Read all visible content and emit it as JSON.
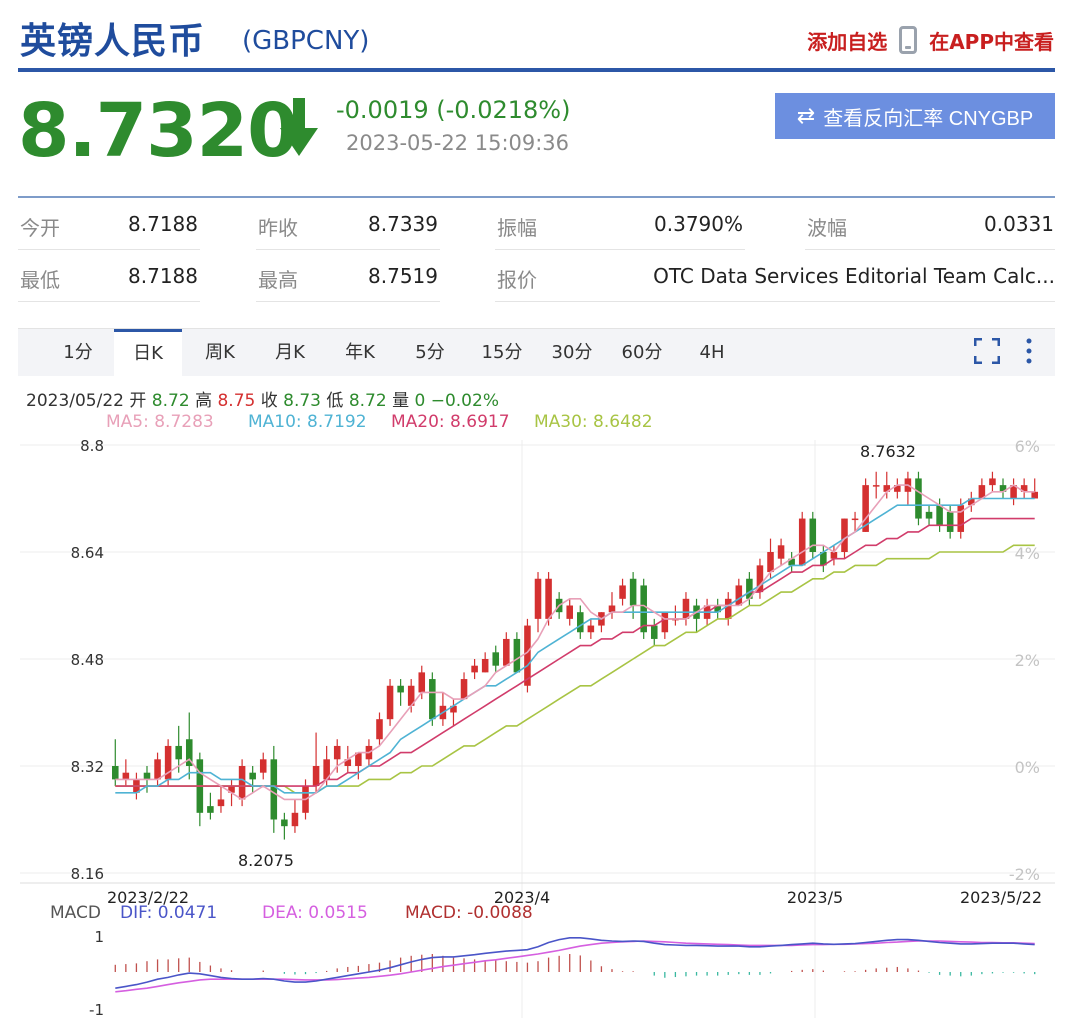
{
  "header": {
    "title": "英镑人民币",
    "code": "(GBPCNY)",
    "add_watchlist": "添加自选",
    "view_in_app": "在APP中查看"
  },
  "quote": {
    "price": "8.7320",
    "change": "-0.0019 (-0.0218%)",
    "time": "2023-05-22 15:09:36",
    "reverse_label": "查看反向汇率 CNYGBP",
    "color_down": "#2e8b2e",
    "color_up": "#d43030"
  },
  "stats": [
    {
      "label": "今开",
      "value": "8.7188"
    },
    {
      "label": "昨收",
      "value": "8.7339"
    },
    {
      "label": "振幅",
      "value": "0.3790%"
    },
    {
      "label": "波幅",
      "value": "0.0331"
    },
    {
      "label": "最低",
      "value": "8.7188"
    },
    {
      "label": "最高",
      "value": "8.7519"
    },
    {
      "label": "报价",
      "value": "OTC Data Services Editorial Team Calc..."
    }
  ],
  "tabs": [
    "1分",
    "日K",
    "周K",
    "月K",
    "年K",
    "5分",
    "15分",
    "30分",
    "60分",
    "4H"
  ],
  "active_tab": "日K",
  "ohlc": {
    "date": "2023/05/22",
    "open_label": "开",
    "open": "8.72",
    "high_label": "高",
    "high": "8.75",
    "close_label": "收",
    "close": "8.73",
    "low_label": "低",
    "low": "8.72",
    "vol_label": "量",
    "vol": "0",
    "pct": "−0.02%"
  },
  "ma_labels": [
    {
      "text": "MA5: 8.7283",
      "color": "#e8a0b8"
    },
    {
      "text": "MA10: 8.7192",
      "color": "#4fb3d4"
    },
    {
      "text": "MA20: 8.6917",
      "color": "#d13c6b"
    },
    {
      "text": "MA30: 8.6482",
      "color": "#a8c444"
    }
  ],
  "macd_labels": {
    "title": "MACD",
    "dif": "DIF: 0.0471",
    "dea": "DEA: 0.0515",
    "macd": "MACD: -0.0088",
    "dif_color": "#4a55c8",
    "dea_color": "#d55fe0",
    "macd_color": "#b03030"
  },
  "chart_data": {
    "type": "candlestick",
    "y_ticks": [
      "8.8",
      "8.64",
      "8.48",
      "8.32",
      "8.16"
    ],
    "ylim": [
      8.16,
      8.8
    ],
    "pct_ticks": [
      "6%",
      "4%",
      "2%",
      "0%",
      "-2%"
    ],
    "x_labels": [
      "2023/2/22",
      "2023/4",
      "2023/5",
      "2023/5/22"
    ],
    "annotations": {
      "max": "8.7632",
      "min": "8.2075"
    },
    "candles": [
      [
        8.32,
        8.3,
        8.36,
        8.29
      ],
      [
        8.3,
        8.31,
        8.33,
        8.29
      ],
      [
        8.28,
        8.3,
        8.31,
        8.27
      ],
      [
        8.31,
        8.3,
        8.32,
        8.28
      ],
      [
        8.3,
        8.33,
        8.34,
        8.29
      ],
      [
        8.3,
        8.35,
        8.36,
        8.29
      ],
      [
        8.35,
        8.33,
        8.38,
        8.31
      ],
      [
        8.36,
        8.32,
        8.4,
        8.3
      ],
      [
        8.33,
        8.25,
        8.34,
        8.23
      ],
      [
        8.26,
        8.25,
        8.28,
        8.24
      ],
      [
        8.26,
        8.27,
        8.29,
        8.25
      ],
      [
        8.28,
        8.29,
        8.3,
        8.26
      ],
      [
        8.27,
        8.32,
        8.33,
        8.26
      ],
      [
        8.31,
        8.3,
        8.32,
        8.28
      ],
      [
        8.31,
        8.33,
        8.34,
        8.3
      ],
      [
        8.33,
        8.24,
        8.35,
        8.22
      ],
      [
        8.24,
        8.23,
        8.25,
        8.21
      ],
      [
        8.23,
        8.25,
        8.27,
        8.22
      ],
      [
        8.25,
        8.29,
        8.3,
        8.24
      ],
      [
        8.29,
        8.32,
        8.37,
        8.28
      ],
      [
        8.3,
        8.33,
        8.35,
        8.29
      ],
      [
        8.33,
        8.35,
        8.36,
        8.31
      ],
      [
        8.32,
        8.33,
        8.35,
        8.31
      ],
      [
        8.32,
        8.34,
        8.34,
        8.3
      ],
      [
        8.33,
        8.35,
        8.36,
        8.32
      ],
      [
        8.36,
        8.39,
        8.4,
        8.35
      ],
      [
        8.39,
        8.44,
        8.45,
        8.38
      ],
      [
        8.44,
        8.43,
        8.45,
        8.41
      ],
      [
        8.41,
        8.44,
        8.45,
        8.4
      ],
      [
        8.43,
        8.46,
        8.47,
        8.42
      ],
      [
        8.45,
        8.39,
        8.46,
        8.38
      ],
      [
        8.39,
        8.41,
        8.43,
        8.38
      ],
      [
        8.4,
        8.41,
        8.42,
        8.38
      ],
      [
        8.42,
        8.45,
        8.46,
        8.42
      ],
      [
        8.46,
        8.47,
        8.48,
        8.45
      ],
      [
        8.46,
        8.48,
        8.49,
        8.46
      ],
      [
        8.49,
        8.47,
        8.5,
        8.46
      ],
      [
        8.47,
        8.51,
        8.52,
        8.47
      ],
      [
        8.51,
        8.46,
        8.52,
        8.46
      ],
      [
        8.44,
        8.53,
        8.54,
        8.43
      ],
      [
        8.54,
        8.6,
        8.61,
        8.52
      ],
      [
        8.54,
        8.6,
        8.61,
        8.53
      ],
      [
        8.57,
        8.55,
        8.58,
        8.54
      ],
      [
        8.54,
        8.56,
        8.57,
        8.53
      ],
      [
        8.55,
        8.52,
        8.56,
        8.51
      ],
      [
        8.52,
        8.53,
        8.54,
        8.51
      ],
      [
        8.53,
        8.55,
        8.55,
        8.52
      ],
      [
        8.55,
        8.56,
        8.58,
        8.54
      ],
      [
        8.57,
        8.59,
        8.6,
        8.56
      ],
      [
        8.6,
        8.56,
        8.61,
        8.54
      ],
      [
        8.59,
        8.52,
        8.6,
        8.51
      ],
      [
        8.53,
        8.51,
        8.54,
        8.5
      ],
      [
        8.52,
        8.55,
        8.55,
        8.51
      ],
      [
        8.54,
        8.54,
        8.56,
        8.53
      ],
      [
        8.54,
        8.57,
        8.58,
        8.53
      ],
      [
        8.56,
        8.54,
        8.57,
        8.52
      ],
      [
        8.54,
        8.56,
        8.57,
        8.53
      ],
      [
        8.56,
        8.55,
        8.57,
        8.54
      ],
      [
        8.54,
        8.57,
        8.58,
        8.53
      ],
      [
        8.56,
        8.59,
        8.6,
        8.56
      ],
      [
        8.6,
        8.57,
        8.61,
        8.56
      ],
      [
        8.58,
        8.62,
        8.63,
        8.57
      ],
      [
        8.61,
        8.64,
        8.66,
        8.6
      ],
      [
        8.63,
        8.65,
        8.66,
        8.62
      ],
      [
        8.63,
        8.62,
        8.64,
        8.61
      ],
      [
        8.62,
        8.69,
        8.7,
        8.62
      ],
      [
        8.69,
        8.64,
        8.7,
        8.63
      ],
      [
        8.64,
        8.62,
        8.65,
        8.61
      ],
      [
        8.63,
        8.64,
        8.65,
        8.62
      ],
      [
        8.64,
        8.69,
        8.69,
        8.63
      ],
      [
        8.69,
        8.69,
        8.7,
        8.67
      ],
      [
        8.67,
        8.74,
        8.75,
        8.67
      ],
      [
        8.74,
        8.74,
        8.76,
        8.72
      ],
      [
        8.73,
        8.74,
        8.76,
        8.72
      ],
      [
        8.73,
        8.74,
        8.75,
        8.72
      ],
      [
        8.73,
        8.75,
        8.76,
        8.71
      ],
      [
        8.75,
        8.69,
        8.76,
        8.68
      ],
      [
        8.7,
        8.69,
        8.71,
        8.68
      ],
      [
        8.71,
        8.68,
        8.72,
        8.67
      ],
      [
        8.7,
        8.67,
        8.71,
        8.66
      ],
      [
        8.67,
        8.71,
        8.72,
        8.66
      ],
      [
        8.71,
        8.72,
        8.73,
        8.7
      ],
      [
        8.72,
        8.74,
        8.75,
        8.72
      ],
      [
        8.74,
        8.75,
        8.76,
        8.73
      ],
      [
        8.74,
        8.73,
        8.75,
        8.72
      ],
      [
        8.72,
        8.74,
        8.75,
        8.71
      ],
      [
        8.73,
        8.74,
        8.75,
        8.72
      ],
      [
        8.72,
        8.73,
        8.75,
        8.72
      ]
    ],
    "ma5": [
      8.3,
      8.3,
      8.3,
      8.3,
      8.3,
      8.31,
      8.32,
      8.33,
      8.31,
      8.3,
      8.29,
      8.28,
      8.27,
      8.28,
      8.29,
      8.28,
      8.27,
      8.27,
      8.27,
      8.28,
      8.3,
      8.32,
      8.33,
      8.34,
      8.34,
      8.35,
      8.37,
      8.39,
      8.41,
      8.43,
      8.43,
      8.43,
      8.42,
      8.42,
      8.43,
      8.44,
      8.46,
      8.47,
      8.48,
      8.49,
      8.51,
      8.54,
      8.56,
      8.57,
      8.57,
      8.55,
      8.54,
      8.55,
      8.55,
      8.56,
      8.56,
      8.55,
      8.54,
      8.54,
      8.54,
      8.55,
      8.56,
      8.56,
      8.56,
      8.56,
      8.57,
      8.59,
      8.61,
      8.62,
      8.63,
      8.64,
      8.65,
      8.65,
      8.64,
      8.66,
      8.67,
      8.69,
      8.71,
      8.73,
      8.74,
      8.74,
      8.73,
      8.72,
      8.71,
      8.7,
      8.7,
      8.71,
      8.72,
      8.73,
      8.73,
      8.74,
      8.73,
      8.73
    ],
    "ma10": [
      8.28,
      8.28,
      8.28,
      8.29,
      8.29,
      8.3,
      8.3,
      8.31,
      8.31,
      8.31,
      8.3,
      8.3,
      8.3,
      8.29,
      8.29,
      8.29,
      8.28,
      8.28,
      8.28,
      8.28,
      8.29,
      8.29,
      8.3,
      8.31,
      8.32,
      8.33,
      8.34,
      8.36,
      8.37,
      8.38,
      8.39,
      8.4,
      8.41,
      8.42,
      8.43,
      8.44,
      8.44,
      8.45,
      8.46,
      8.47,
      8.49,
      8.5,
      8.51,
      8.52,
      8.53,
      8.54,
      8.54,
      8.55,
      8.55,
      8.55,
      8.55,
      8.55,
      8.55,
      8.55,
      8.55,
      8.55,
      8.55,
      8.55,
      8.56,
      8.57,
      8.58,
      8.59,
      8.6,
      8.61,
      8.62,
      8.62,
      8.63,
      8.64,
      8.65,
      8.66,
      8.67,
      8.68,
      8.69,
      8.7,
      8.71,
      8.71,
      8.71,
      8.71,
      8.71,
      8.71,
      8.71,
      8.72,
      8.72,
      8.72,
      8.72,
      8.72,
      8.72,
      8.72
    ],
    "ma20": [
      8.29,
      8.29,
      8.29,
      8.29,
      8.29,
      8.29,
      8.29,
      8.29,
      8.29,
      8.29,
      8.29,
      8.29,
      8.29,
      8.29,
      8.29,
      8.29,
      8.29,
      8.29,
      8.29,
      8.29,
      8.3,
      8.3,
      8.31,
      8.31,
      8.32,
      8.32,
      8.33,
      8.34,
      8.34,
      8.35,
      8.36,
      8.37,
      8.38,
      8.39,
      8.4,
      8.41,
      8.42,
      8.43,
      8.44,
      8.45,
      8.46,
      8.47,
      8.48,
      8.49,
      8.5,
      8.5,
      8.51,
      8.51,
      8.52,
      8.52,
      8.53,
      8.53,
      8.54,
      8.54,
      8.54,
      8.55,
      8.55,
      8.56,
      8.56,
      8.57,
      8.58,
      8.58,
      8.59,
      8.6,
      8.61,
      8.61,
      8.62,
      8.62,
      8.63,
      8.63,
      8.64,
      8.65,
      8.65,
      8.66,
      8.66,
      8.67,
      8.67,
      8.68,
      8.68,
      8.68,
      8.68,
      8.69,
      8.69,
      8.69,
      8.69,
      8.69,
      8.69,
      8.69
    ],
    "ma30": [
      8.29,
      8.29,
      8.29,
      8.29,
      8.29,
      8.29,
      8.29,
      8.29,
      8.29,
      8.29,
      8.29,
      8.29,
      8.29,
      8.29,
      8.29,
      8.29,
      8.29,
      8.28,
      8.28,
      8.28,
      8.29,
      8.29,
      8.29,
      8.29,
      8.3,
      8.3,
      8.3,
      8.31,
      8.31,
      8.32,
      8.32,
      8.33,
      8.34,
      8.35,
      8.35,
      8.36,
      8.37,
      8.38,
      8.38,
      8.39,
      8.4,
      8.41,
      8.42,
      8.43,
      8.44,
      8.44,
      8.45,
      8.46,
      8.47,
      8.48,
      8.49,
      8.5,
      8.5,
      8.51,
      8.52,
      8.52,
      8.53,
      8.54,
      8.54,
      8.55,
      8.56,
      8.56,
      8.57,
      8.58,
      8.58,
      8.59,
      8.6,
      8.6,
      8.61,
      8.61,
      8.62,
      8.62,
      8.62,
      8.63,
      8.63,
      8.63,
      8.63,
      8.63,
      8.64,
      8.64,
      8.64,
      8.64,
      8.64,
      8.64,
      8.64,
      8.65,
      8.65,
      8.65
    ],
    "macd_ylim": [
      -1,
      1
    ],
    "macd_y_ticks": [
      "1",
      "-1"
    ],
    "dif": [
      -0.45,
      -0.4,
      -0.35,
      -0.28,
      -0.2,
      -0.15,
      -0.08,
      -0.03,
      -0.05,
      -0.1,
      -0.15,
      -0.18,
      -0.2,
      -0.2,
      -0.18,
      -0.2,
      -0.25,
      -0.28,
      -0.28,
      -0.25,
      -0.2,
      -0.15,
      -0.1,
      -0.05,
      0.0,
      0.05,
      0.12,
      0.2,
      0.28,
      0.35,
      0.4,
      0.42,
      0.42,
      0.45,
      0.48,
      0.52,
      0.55,
      0.58,
      0.6,
      0.62,
      0.7,
      0.82,
      0.9,
      0.95,
      0.95,
      0.92,
      0.88,
      0.86,
      0.85,
      0.86,
      0.85,
      0.8,
      0.76,
      0.75,
      0.74,
      0.74,
      0.73,
      0.72,
      0.72,
      0.72,
      0.7,
      0.7,
      0.72,
      0.74,
      0.76,
      0.78,
      0.8,
      0.78,
      0.77,
      0.78,
      0.79,
      0.82,
      0.85,
      0.88,
      0.9,
      0.9,
      0.88,
      0.85,
      0.82,
      0.8,
      0.78,
      0.78,
      0.79,
      0.8,
      0.8,
      0.8,
      0.78,
      0.76
    ],
    "dea": [
      -0.55,
      -0.52,
      -0.48,
      -0.45,
      -0.4,
      -0.35,
      -0.3,
      -0.26,
      -0.22,
      -0.2,
      -0.2,
      -0.2,
      -0.2,
      -0.2,
      -0.2,
      -0.2,
      -0.2,
      -0.21,
      -0.22,
      -0.22,
      -0.22,
      -0.21,
      -0.19,
      -0.17,
      -0.15,
      -0.12,
      -0.09,
      -0.05,
      0.0,
      0.05,
      0.1,
      0.15,
      0.19,
      0.23,
      0.27,
      0.31,
      0.34,
      0.38,
      0.42,
      0.46,
      0.5,
      0.55,
      0.6,
      0.66,
      0.72,
      0.76,
      0.8,
      0.82,
      0.84,
      0.85,
      0.86,
      0.85,
      0.84,
      0.82,
      0.8,
      0.79,
      0.78,
      0.77,
      0.76,
      0.75,
      0.74,
      0.74,
      0.74,
      0.74,
      0.74,
      0.75,
      0.76,
      0.76,
      0.77,
      0.77,
      0.78,
      0.79,
      0.8,
      0.82,
      0.83,
      0.85,
      0.86,
      0.86,
      0.86,
      0.85,
      0.84,
      0.83,
      0.82,
      0.82,
      0.81,
      0.81,
      0.8,
      0.79
    ],
    "macd_bars": [
      0.2,
      0.22,
      0.24,
      0.3,
      0.35,
      0.35,
      0.38,
      0.4,
      0.28,
      0.18,
      0.1,
      0.05,
      0.0,
      0.0,
      0.04,
      0.0,
      -0.05,
      -0.07,
      -0.06,
      -0.03,
      0.03,
      0.1,
      0.14,
      0.17,
      0.22,
      0.26,
      0.32,
      0.4,
      0.45,
      0.48,
      0.5,
      0.45,
      0.4,
      0.38,
      0.35,
      0.33,
      0.32,
      0.3,
      0.28,
      0.26,
      0.3,
      0.4,
      0.45,
      0.5,
      0.46,
      0.32,
      0.16,
      0.08,
      0.02,
      0.02,
      0.0,
      -0.1,
      -0.16,
      -0.14,
      -0.12,
      -0.1,
      -0.1,
      -0.1,
      -0.08,
      -0.06,
      -0.08,
      -0.08,
      -0.04,
      0.0,
      0.03,
      0.06,
      0.08,
      0.04,
      0.0,
      0.02,
      0.02,
      0.06,
      0.1,
      0.12,
      0.14,
      0.1,
      0.04,
      -0.02,
      -0.08,
      -0.1,
      -0.12,
      -0.1,
      -0.06,
      -0.04,
      -0.02,
      -0.02,
      -0.04,
      -0.06
    ]
  }
}
